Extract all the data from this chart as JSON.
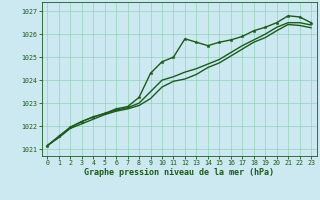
{
  "title": "Graphe pression niveau de la mer (hPa)",
  "bg_color": "#cce8f0",
  "grid_color": "#88ccaa",
  "line_color": "#1a5c1a",
  "xlim": [
    -0.5,
    23.5
  ],
  "ylim": [
    1020.7,
    1027.4
  ],
  "yticks": [
    1021,
    1022,
    1023,
    1024,
    1025,
    1026,
    1027
  ],
  "xticks": [
    0,
    1,
    2,
    3,
    4,
    5,
    6,
    7,
    8,
    9,
    10,
    11,
    12,
    13,
    14,
    15,
    16,
    17,
    18,
    19,
    20,
    21,
    22,
    23
  ],
  "series": [
    {
      "x": [
        0,
        1,
        2,
        3,
        4,
        5,
        6,
        7,
        8,
        9,
        10,
        11,
        12,
        13,
        14,
        15,
        16,
        17,
        18,
        19,
        20,
        21,
        22,
        23
      ],
      "y": [
        1021.15,
        1021.55,
        1021.95,
        1022.2,
        1022.4,
        1022.55,
        1022.75,
        1022.85,
        1023.25,
        1024.3,
        1024.8,
        1025.0,
        1025.8,
        1025.65,
        1025.5,
        1025.65,
        1025.75,
        1025.9,
        1026.15,
        1026.3,
        1026.5,
        1026.8,
        1026.75,
        1026.5
      ],
      "marker": true,
      "linewidth": 1.0,
      "markersize": 2.5
    },
    {
      "x": [
        0,
        1,
        2,
        3,
        4,
        5,
        6,
        7,
        8,
        9,
        10,
        11,
        12,
        13,
        14,
        15,
        16,
        17,
        18,
        19,
        20,
        21,
        22,
        23
      ],
      "y": [
        1021.15,
        1021.55,
        1021.95,
        1022.2,
        1022.4,
        1022.55,
        1022.7,
        1022.8,
        1023.0,
        1023.5,
        1024.0,
        1024.15,
        1024.35,
        1024.5,
        1024.7,
        1024.9,
        1025.2,
        1025.5,
        1025.75,
        1026.0,
        1026.3,
        1026.5,
        1026.5,
        1026.4
      ],
      "marker": false,
      "linewidth": 1.0
    },
    {
      "x": [
        0,
        1,
        2,
        3,
        4,
        5,
        6,
        7,
        8,
        9,
        10,
        11,
        12,
        13,
        14,
        15,
        16,
        17,
        18,
        19,
        20,
        21,
        22,
        23
      ],
      "y": [
        1021.15,
        1021.5,
        1021.9,
        1022.1,
        1022.3,
        1022.5,
        1022.65,
        1022.75,
        1022.9,
        1023.2,
        1023.7,
        1023.95,
        1024.05,
        1024.25,
        1024.55,
        1024.75,
        1025.05,
        1025.35,
        1025.65,
        1025.85,
        1026.15,
        1026.42,
        1026.38,
        1026.28
      ],
      "marker": false,
      "linewidth": 1.0
    }
  ],
  "title_fontsize": 6.0,
  "tick_fontsize": 4.8,
  "tick_color": "#1a5c1a"
}
